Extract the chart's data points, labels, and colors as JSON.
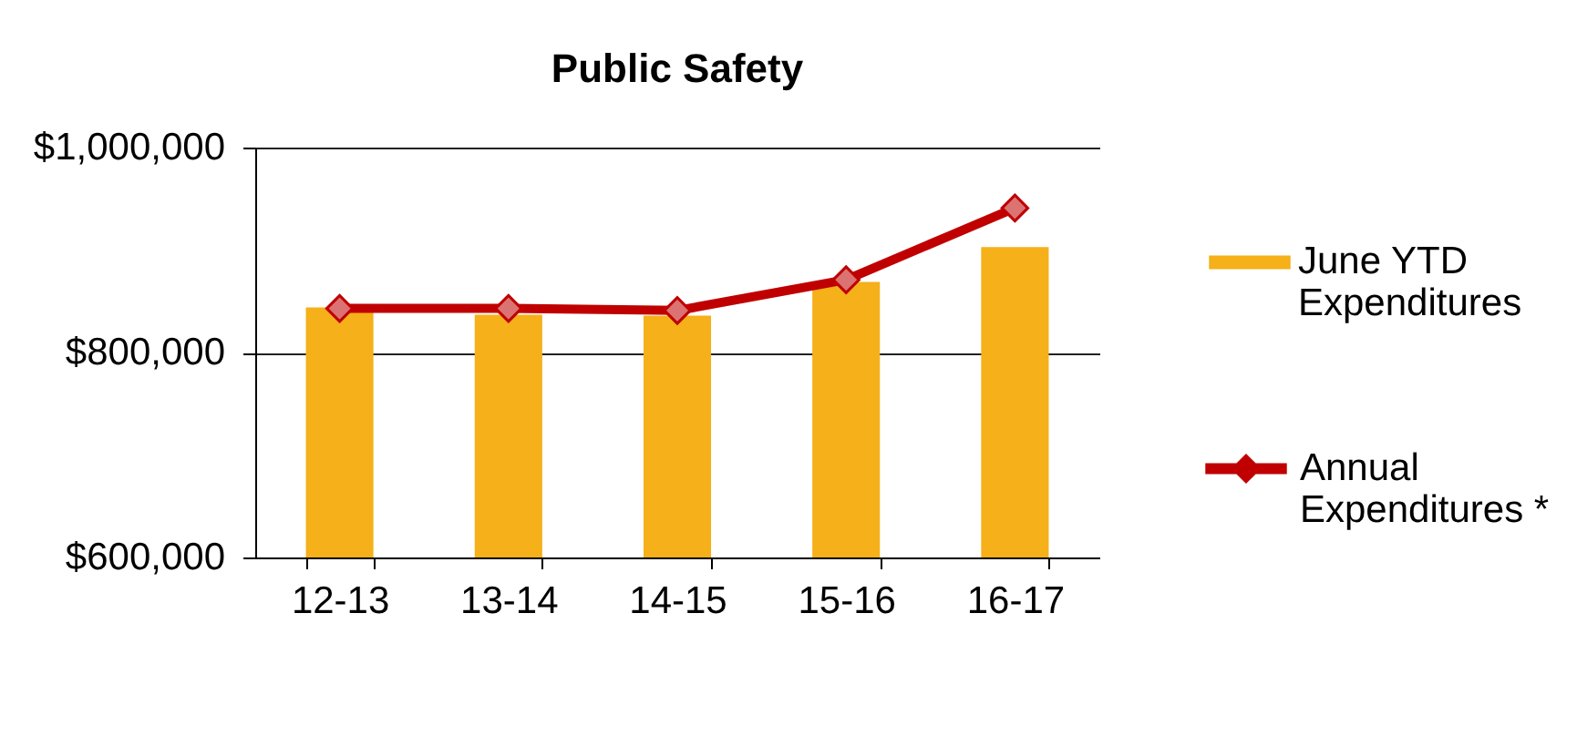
{
  "chart_data": {
    "type": "bar",
    "title": "Public Safety",
    "categories": [
      "12-13",
      "13-14",
      "14-15",
      "15-16",
      "16-17"
    ],
    "series": [
      {
        "name": "June YTD Expenditures",
        "color": "#f5b01a",
        "values": [
          844000,
          837000,
          836000,
          869000,
          903000
        ]
      },
      {
        "name": "Annual Expenditures *",
        "type": "line",
        "color": "#c00000",
        "values": [
          843000,
          843000,
          841000,
          871000,
          941000
        ]
      }
    ],
    "ylim": [
      600000,
      1000000
    ],
    "yticks": [
      {
        "value": 600000,
        "label": "$600,000"
      },
      {
        "value": 800000,
        "label": "$800,000"
      },
      {
        "value": 1000000,
        "label": "$1,000,000"
      }
    ],
    "grid": "y",
    "legend": "right",
    "marker": "diamond",
    "line_style": "solid"
  }
}
